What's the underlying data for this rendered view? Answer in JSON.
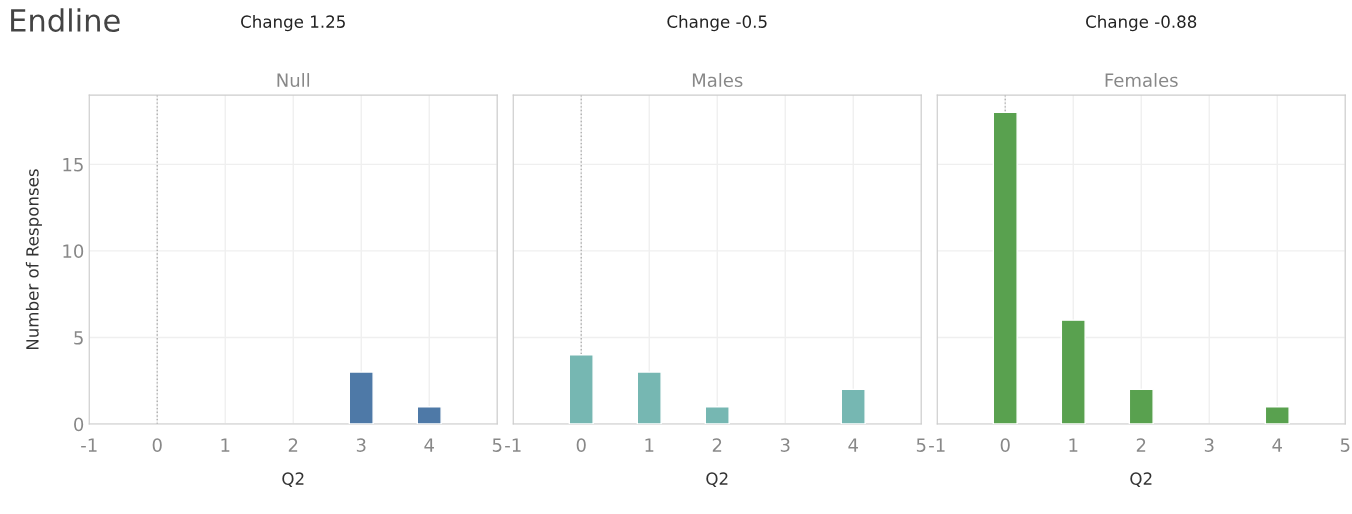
{
  "chart_data": [
    {
      "type": "bar",
      "title": "Null",
      "subtitle": "Change 1.25",
      "annotations": [
        "Endline"
      ],
      "xlabel": "Q2",
      "ylabel": "Number of Responses",
      "x": [
        3,
        4
      ],
      "values": [
        3,
        1
      ],
      "color": "#4e79a7",
      "xlim": [
        -1,
        5
      ],
      "xticks": [
        -1,
        0,
        1,
        2,
        3,
        4,
        5
      ],
      "ylim": [
        0,
        19
      ],
      "yticks": [
        0,
        5,
        10,
        15
      ],
      "grid": true,
      "ref_lines": [
        {
          "axis": "x",
          "value": 0,
          "color": "#b0b0b0",
          "line_style": "dotted"
        }
      ]
    },
    {
      "type": "bar",
      "title": "Males",
      "subtitle": "Change -0.5",
      "xlabel": "Q2",
      "x": [
        0,
        1,
        2,
        4
      ],
      "values": [
        4,
        3,
        1,
        2
      ],
      "color": "#76b7b2",
      "xlim": [
        -1,
        5
      ],
      "xticks": [
        -1,
        0,
        1,
        2,
        3,
        4,
        5
      ],
      "ylim": [
        0,
        19
      ],
      "yticks": [
        0,
        5,
        10,
        15
      ],
      "grid": true,
      "tick_labels": "x",
      "ref_lines": [
        {
          "axis": "x",
          "value": 0,
          "color": "#b0b0b0",
          "line_style": "dotted"
        }
      ]
    },
    {
      "type": "bar",
      "title": "Females",
      "subtitle": "Change -0.88",
      "xlabel": "Q2",
      "x": [
        0,
        1,
        2,
        4
      ],
      "values": [
        18,
        6,
        2,
        1
      ],
      "color": "#59a14f",
      "xlim": [
        -1,
        5
      ],
      "xticks": [
        -1,
        0,
        1,
        2,
        3,
        4,
        5
      ],
      "ylim": [
        0,
        19
      ],
      "yticks": [
        0,
        5,
        10,
        15
      ],
      "grid": true,
      "tick_labels": "x",
      "ref_lines": [
        {
          "axis": "x",
          "value": 0,
          "color": "#b0b0b0",
          "line_style": "dotted"
        }
      ]
    }
  ]
}
